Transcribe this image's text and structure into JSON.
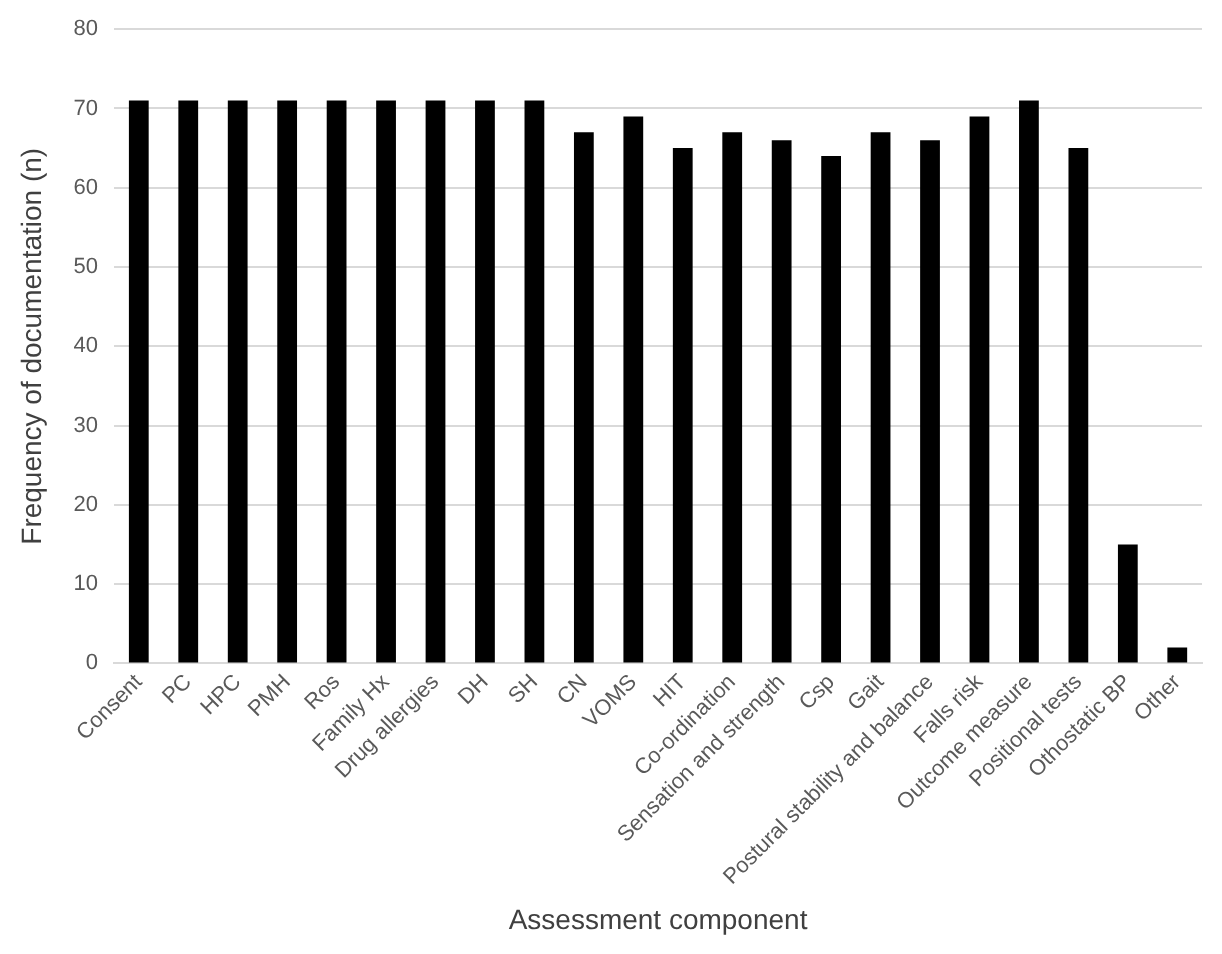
{
  "chart_data": {
    "type": "bar",
    "xlabel": "Assessment component",
    "ylabel": "Frequency of documentation (n)",
    "categories": [
      "Consent",
      "PC",
      "HPC",
      "PMH",
      "Ros",
      "Family Hx",
      "Drug allergies",
      "DH",
      "SH",
      "CN",
      "VOMS",
      "HIT",
      "Co-ordination",
      "Sensation and strength",
      "Csp",
      "Gait",
      "Postural stability and balance",
      "Falls risk",
      "Outcome measure",
      "Positional tests",
      "Othostatic BP",
      "Other"
    ],
    "values": [
      71,
      71,
      71,
      71,
      71,
      71,
      71,
      71,
      71,
      67,
      69,
      65,
      67,
      66,
      64,
      67,
      66,
      69,
      71,
      65,
      15,
      2
    ],
    "color": "#000000",
    "ylim": [
      0,
      80
    ],
    "yticks": [
      0,
      10,
      20,
      30,
      40,
      50,
      60,
      70,
      80
    ],
    "grid": "y"
  }
}
